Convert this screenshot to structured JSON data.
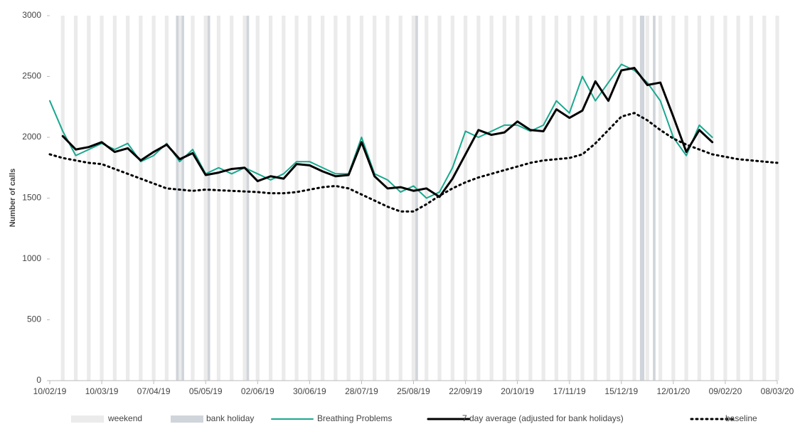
{
  "chart_data": {
    "type": "line",
    "y_label": "Number of calls",
    "x": [
      "10/02/19",
      "17/02/19",
      "24/02/19",
      "03/03/19",
      "10/03/19",
      "17/03/19",
      "24/03/19",
      "31/03/19",
      "07/04/19",
      "14/04/19",
      "21/04/19",
      "28/04/19",
      "05/05/19",
      "12/05/19",
      "19/05/19",
      "26/05/19",
      "02/06/19",
      "09/06/19",
      "16/06/19",
      "23/06/19",
      "30/06/19",
      "07/07/19",
      "14/07/19",
      "21/07/19",
      "28/07/19",
      "04/08/19",
      "11/08/19",
      "18/08/19",
      "25/08/19",
      "01/09/19",
      "08/09/19",
      "15/09/19",
      "22/09/19",
      "29/09/19",
      "06/10/19",
      "13/10/19",
      "20/10/19",
      "27/10/19",
      "03/11/19",
      "10/11/19",
      "17/11/19",
      "24/11/19",
      "01/12/19",
      "08/12/19",
      "15/12/19",
      "22/12/19",
      "29/12/19",
      "05/01/20",
      "12/01/20",
      "19/01/20",
      "26/01/20",
      "02/02/20",
      "09/02/20",
      "16/02/20",
      "23/02/20",
      "01/03/20",
      "08/03/20"
    ],
    "series": [
      {
        "name": "Breathing Problems",
        "color": "#1aa88f",
        "width": 2,
        "dash": "none",
        "values": [
          2300,
          2050,
          1850,
          1900,
          1950,
          1900,
          1950,
          1800,
          1850,
          1950,
          1800,
          1900,
          1700,
          1750,
          1700,
          1750,
          1700,
          1650,
          1700,
          1800,
          1800,
          1750,
          1700,
          1700,
          2000,
          1700,
          1650,
          1550,
          1600,
          1500,
          1550,
          1750,
          2050,
          2000,
          2050,
          2100,
          2100,
          2050,
          2100,
          2300,
          2200,
          2500,
          2300,
          2450,
          2600,
          2550,
          2450,
          2300,
          2000,
          1850,
          2100,
          2000,
          null,
          null,
          null,
          null,
          null
        ]
      },
      {
        "name": "7 day average (adjusted for bank holidays)",
        "color": "#000000",
        "width": 3,
        "dash": "none",
        "values": [
          null,
          2010,
          1900,
          1920,
          1960,
          1880,
          1910,
          1810,
          1880,
          1940,
          1820,
          1870,
          1690,
          1710,
          1740,
          1750,
          1640,
          1680,
          1660,
          1780,
          1770,
          1720,
          1680,
          1690,
          1960,
          1680,
          1580,
          1590,
          1560,
          1580,
          1510,
          1660,
          1860,
          2060,
          2020,
          2040,
          2130,
          2060,
          2050,
          2230,
          2160,
          2220,
          2460,
          2300,
          2550,
          2570,
          2430,
          2450,
          2170,
          1880,
          2060,
          1960,
          null,
          null,
          null,
          null,
          null
        ]
      },
      {
        "name": "baseline",
        "color": "#000000",
        "width": 3,
        "dash": "2 5",
        "values": [
          1860,
          1830,
          1810,
          1790,
          1780,
          1740,
          1700,
          1660,
          1620,
          1580,
          1570,
          1560,
          1570,
          1565,
          1560,
          1555,
          1550,
          1540,
          1540,
          1550,
          1570,
          1590,
          1600,
          1580,
          1530,
          1480,
          1430,
          1390,
          1390,
          1450,
          1520,
          1580,
          1630,
          1670,
          1700,
          1730,
          1760,
          1790,
          1810,
          1820,
          1830,
          1860,
          1950,
          2060,
          2170,
          2200,
          2140,
          2060,
          1990,
          1940,
          1900,
          1860,
          1840,
          1820,
          1810,
          1800,
          1790
        ]
      }
    ],
    "weekend_label": "weekend",
    "bank_holiday_label": "bank holiday",
    "bank_holidays": [
      "19/04/19",
      "22/04/19",
      "06/05/19",
      "27/05/19",
      "26/08/19",
      "25/12/19",
      "26/12/19",
      "01/01/20"
    ],
    "xlim": [
      "10/02/19",
      "08/03/20"
    ],
    "xticks": [
      "10/02/19",
      "10/03/19",
      "07/04/19",
      "05/05/19",
      "02/06/19",
      "30/06/19",
      "28/07/19",
      "25/08/19",
      "22/09/19",
      "20/10/19",
      "17/11/19",
      "15/12/19",
      "12/01/20",
      "09/02/20",
      "08/03/20"
    ],
    "ylim": [
      0,
      3000
    ],
    "yticks": [
      0,
      500,
      1000,
      1500,
      2000,
      2500,
      3000
    ]
  }
}
